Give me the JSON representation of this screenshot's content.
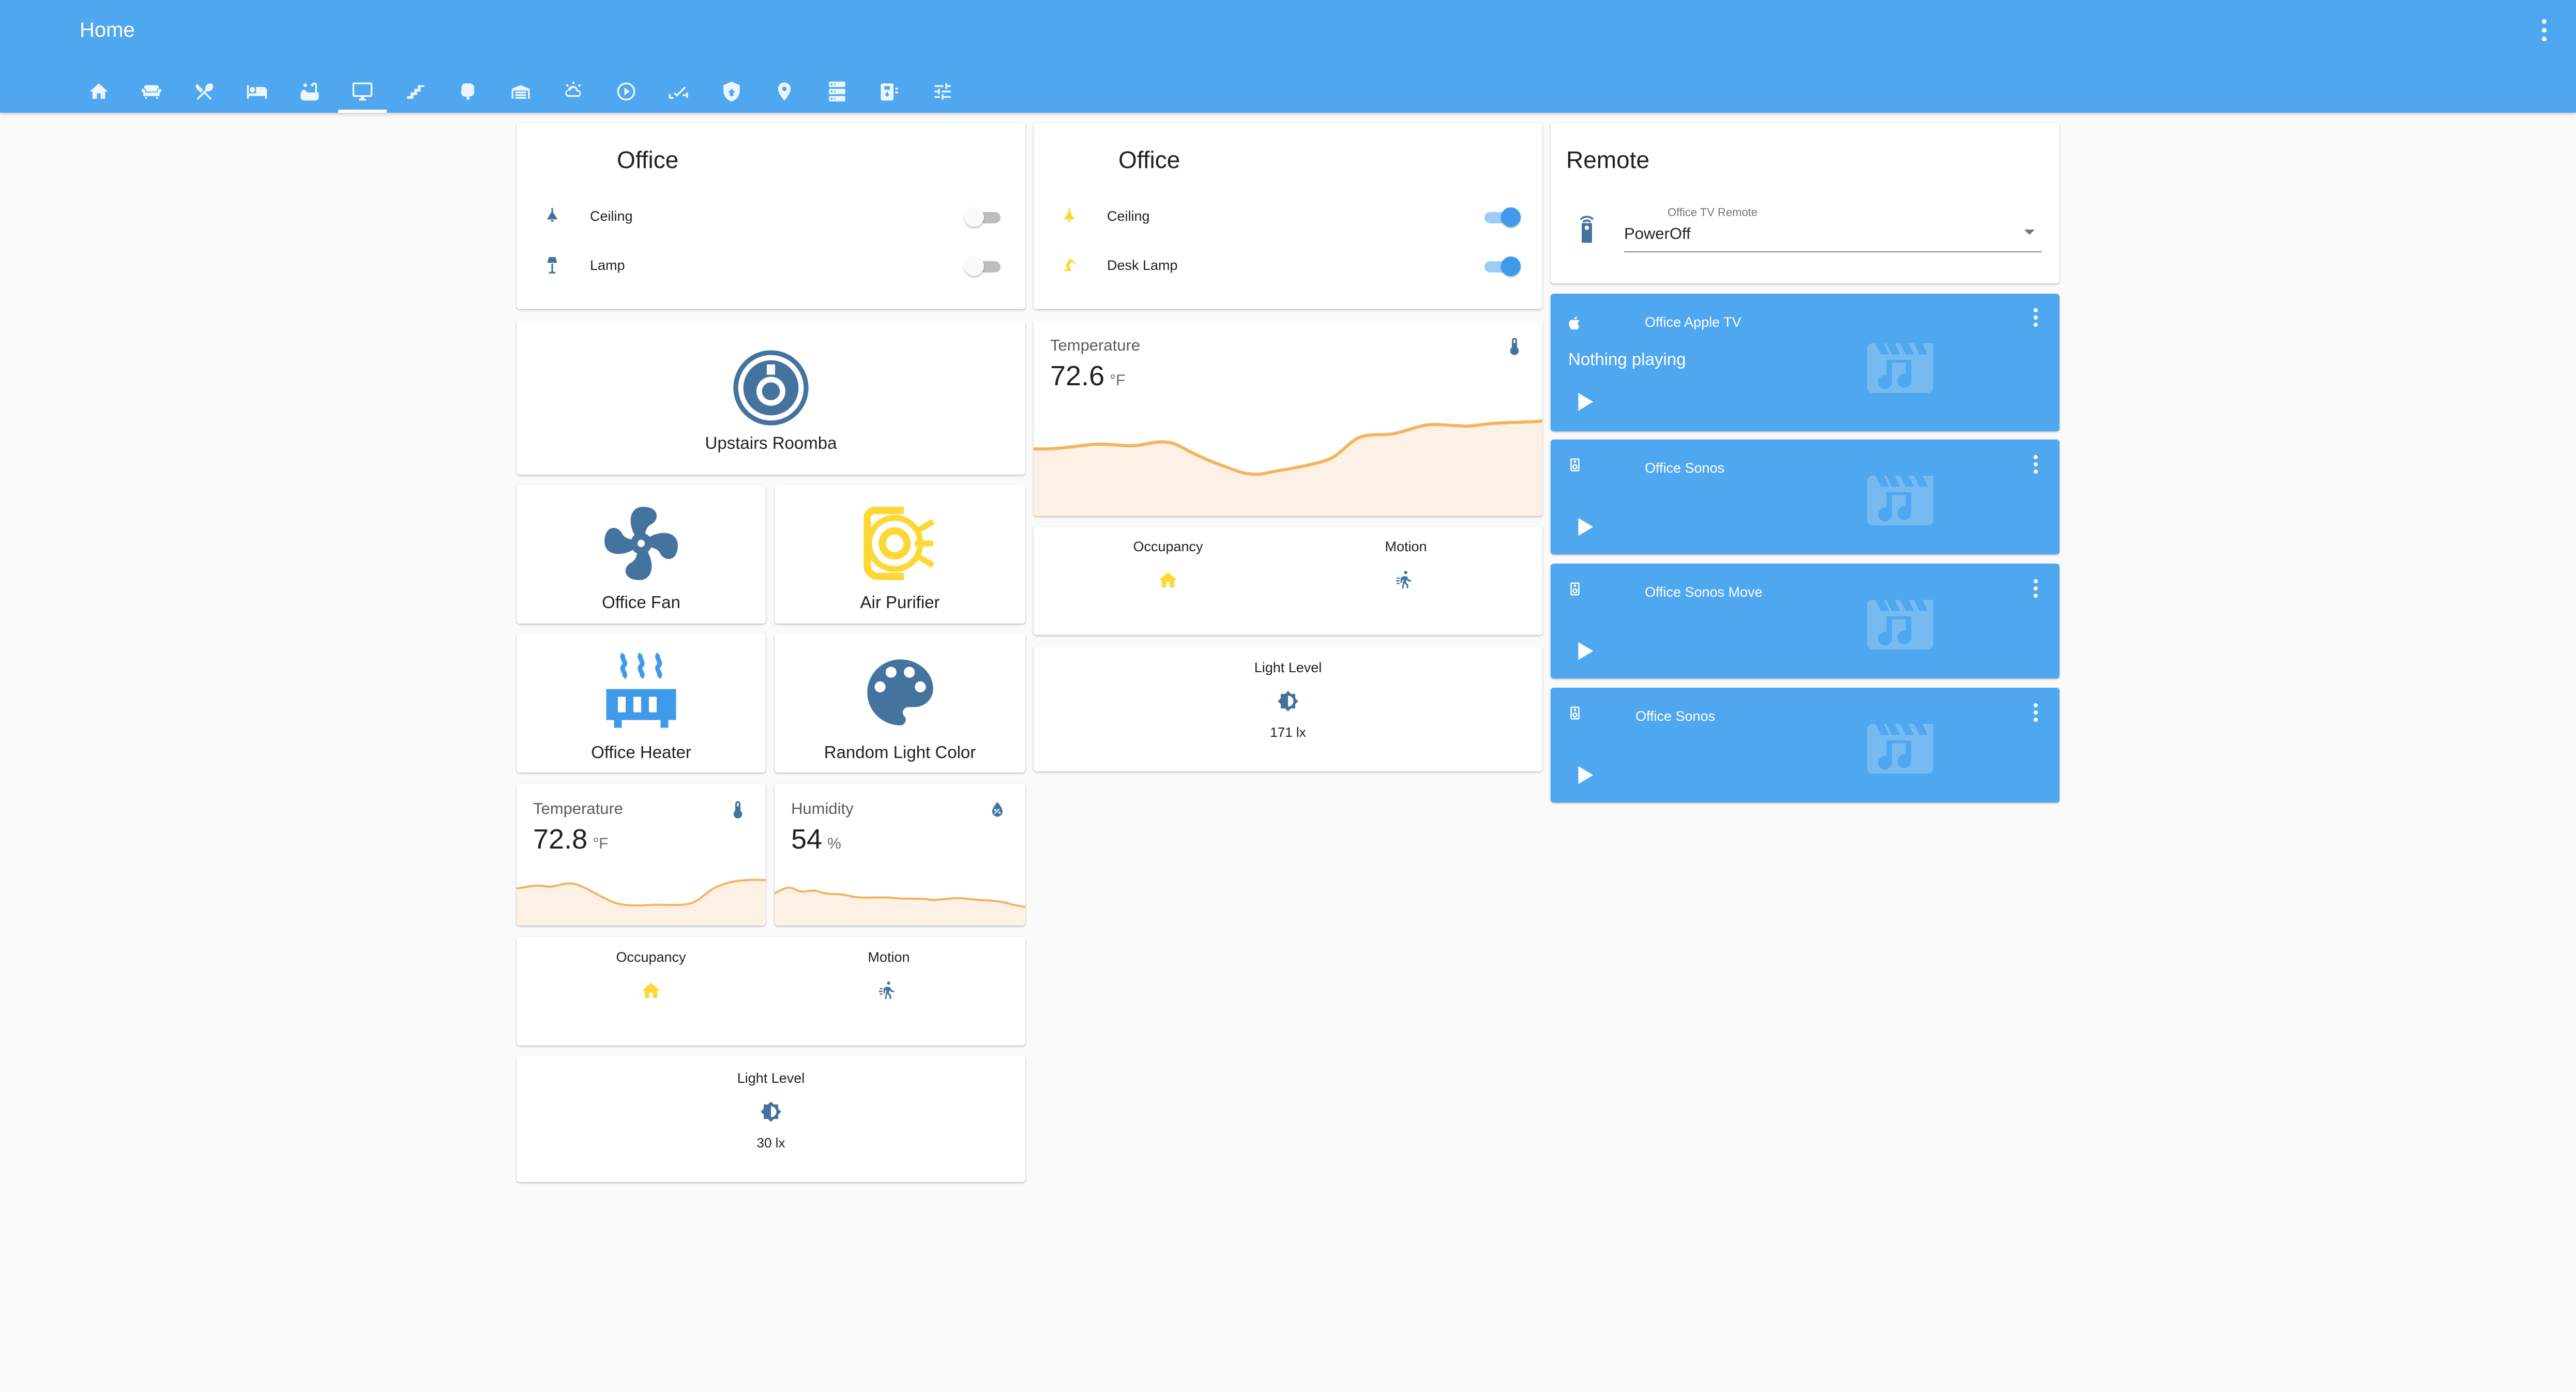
{
  "header": {
    "title": "Home",
    "tabs": [
      "home-icon",
      "sofa-icon",
      "utensils-icon",
      "bed-icon",
      "bathtub-icon",
      "monitor-icon",
      "stairs-icon",
      "tree-icon",
      "garage-icon",
      "weather-icon",
      "play-circle-icon",
      "cctv-icon",
      "shield-home-icon",
      "map-marker-icon",
      "server-icon",
      "water-heater-icon",
      "tune-icon"
    ],
    "active_tab": 5
  },
  "colors": {
    "accent": "#4fa7ef",
    "icon_blue": "#44739e",
    "state_yellow": "#fdd835",
    "graph_orange": "#f5b35f"
  },
  "office_left": {
    "title": "Office",
    "rows": [
      {
        "name": "Ceiling",
        "on": false
      },
      {
        "name": "Lamp",
        "on": false
      }
    ]
  },
  "office_right": {
    "title": "Office",
    "rows": [
      {
        "name": "Ceiling",
        "on": true
      },
      {
        "name": "Desk Lamp",
        "on": true
      }
    ]
  },
  "buttons": {
    "roomba": "Upstairs Roomba",
    "fan": "Office Fan",
    "purifier": "Air Purifier",
    "heater": "Office Heater",
    "light_color": "Random Light Color"
  },
  "temp_small": {
    "name": "Temperature",
    "value": "72.8",
    "unit": "°F"
  },
  "humidity": {
    "name": "Humidity",
    "value": "54",
    "unit": "%"
  },
  "temp_large": {
    "name": "Temperature",
    "value": "72.6",
    "unit": "°F"
  },
  "glance_left": {
    "occupancy": "Occupancy",
    "motion": "Motion"
  },
  "glance_right": {
    "occupancy": "Occupancy",
    "motion": "Motion"
  },
  "light_left": {
    "name": "Light Level",
    "state": "30 lx"
  },
  "light_right": {
    "name": "Light Level",
    "state": "171 lx"
  },
  "remote": {
    "title": "Remote",
    "select_label": "Office TV Remote",
    "select_value": "PowerOff"
  },
  "media": [
    {
      "name": "Office Apple TV",
      "status": "Nothing playing",
      "icon": "apple-icon"
    },
    {
      "name": "Office Sonos",
      "status": "",
      "icon": "speaker-icon"
    },
    {
      "name": "Office Sonos Move",
      "status": "",
      "icon": "speaker-icon"
    },
    {
      "name": "Office Sonos",
      "status": "",
      "icon": "speaker-icon"
    }
  ]
}
